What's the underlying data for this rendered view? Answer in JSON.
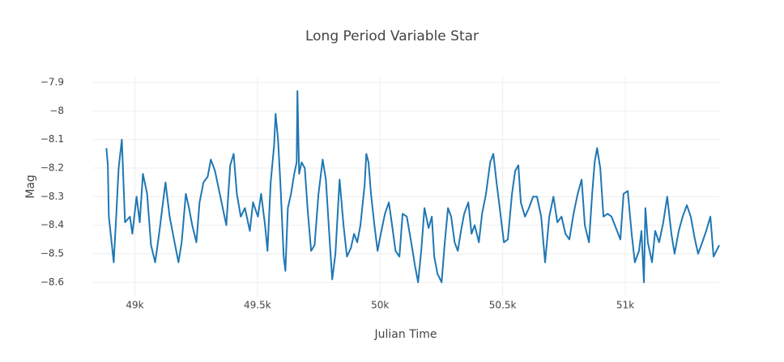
{
  "chart_data": {
    "type": "line",
    "title": "Long Period Variable Star",
    "x_label": "Julian Time",
    "y_label": "Mag",
    "x": [
      48884,
      48890,
      48894,
      48914,
      48924,
      48934,
      48947,
      48960,
      48980,
      48990,
      49007,
      49020,
      49033,
      49050,
      49066,
      49083,
      49099,
      49125,
      49142,
      49162,
      49178,
      49191,
      49208,
      49221,
      49234,
      49251,
      49264,
      49280,
      49297,
      49310,
      49327,
      49373,
      49389,
      49403,
      49416,
      49432,
      49449,
      49469,
      49482,
      49502,
      49515,
      49531,
      49541,
      49554,
      49568,
      49574,
      49584,
      49594,
      49607,
      49614,
      49624,
      49637,
      49650,
      49660,
      49663,
      49670,
      49680,
      49693,
      49706,
      49719,
      49733,
      49749,
      49766,
      49779,
      49795,
      49805,
      49818,
      49835,
      49851,
      49865,
      49881,
      49894,
      49907,
      49920,
      49937,
      49944,
      49953,
      49963,
      49977,
      49990,
      50003,
      50020,
      50036,
      50049,
      50063,
      50079,
      50092,
      50109,
      50129,
      50142,
      50155,
      50168,
      50181,
      50198,
      50211,
      50221,
      50234,
      50251,
      50264,
      50277,
      50290,
      50304,
      50317,
      50330,
      50343,
      50360,
      50373,
      50386,
      50403,
      50416,
      50432,
      50449,
      50462,
      50475,
      50488,
      50505,
      50521,
      50538,
      50551,
      50564,
      50574,
      50591,
      50607,
      50624,
      50640,
      50657,
      50673,
      50690,
      50707,
      50723,
      50740,
      50756,
      50772,
      50789,
      50806,
      50822,
      50835,
      50852,
      50865,
      50875,
      50885,
      50898,
      50911,
      50928,
      50944,
      50980,
      50993,
      51010,
      51026,
      51039,
      51056,
      51066,
      51076,
      51082,
      51092,
      51109,
      51122,
      51138,
      51155,
      51171,
      51188,
      51201,
      51218,
      51234,
      51251,
      51267,
      51284,
      51297,
      51314,
      51330,
      51347,
      51360,
      51383
    ],
    "series": [
      {
        "name": "Mag",
        "color": "#1f77b4",
        "values": [
          -8.13,
          -8.19,
          -8.37,
          -8.53,
          -8.37,
          -8.2,
          -8.1,
          -8.39,
          -8.37,
          -8.43,
          -8.3,
          -8.39,
          -8.22,
          -8.29,
          -8.47,
          -8.53,
          -8.43,
          -8.25,
          -8.37,
          -8.46,
          -8.53,
          -8.46,
          -8.29,
          -8.34,
          -8.4,
          -8.46,
          -8.32,
          -8.25,
          -8.23,
          -8.17,
          -8.21,
          -8.4,
          -8.19,
          -8.15,
          -8.29,
          -8.37,
          -8.34,
          -8.42,
          -8.32,
          -8.37,
          -8.29,
          -8.4,
          -8.49,
          -8.25,
          -8.12,
          -8.01,
          -8.1,
          -8.26,
          -8.51,
          -8.56,
          -8.34,
          -8.29,
          -8.22,
          -8.18,
          -7.93,
          -8.22,
          -8.18,
          -8.2,
          -8.36,
          -8.49,
          -8.47,
          -8.29,
          -8.17,
          -8.24,
          -8.46,
          -8.59,
          -8.5,
          -8.24,
          -8.4,
          -8.51,
          -8.48,
          -8.43,
          -8.46,
          -8.4,
          -8.26,
          -8.15,
          -8.18,
          -8.29,
          -8.4,
          -8.49,
          -8.43,
          -8.36,
          -8.32,
          -8.4,
          -8.49,
          -8.51,
          -8.36,
          -8.37,
          -8.47,
          -8.54,
          -8.6,
          -8.49,
          -8.34,
          -8.41,
          -8.37,
          -8.51,
          -8.57,
          -8.6,
          -8.46,
          -8.34,
          -8.37,
          -8.46,
          -8.49,
          -8.42,
          -8.36,
          -8.32,
          -8.43,
          -8.4,
          -8.46,
          -8.36,
          -8.29,
          -8.18,
          -8.15,
          -8.25,
          -8.34,
          -8.46,
          -8.45,
          -8.29,
          -8.21,
          -8.19,
          -8.32,
          -8.37,
          -8.34,
          -8.3,
          -8.3,
          -8.37,
          -8.53,
          -8.37,
          -8.3,
          -8.39,
          -8.37,
          -8.43,
          -8.45,
          -8.36,
          -8.29,
          -8.24,
          -8.4,
          -8.46,
          -8.29,
          -8.18,
          -8.13,
          -8.2,
          -8.37,
          -8.36,
          -8.37,
          -8.45,
          -8.29,
          -8.28,
          -8.43,
          -8.53,
          -8.49,
          -8.42,
          -8.6,
          -8.34,
          -8.46,
          -8.53,
          -8.42,
          -8.46,
          -8.39,
          -8.3,
          -8.43,
          -8.5,
          -8.42,
          -8.37,
          -8.33,
          -8.37,
          -8.45,
          -8.5,
          -8.46,
          -8.42,
          -8.37,
          -8.51,
          -8.47
        ]
      }
    ],
    "xlim": [
      48830,
      51383
    ],
    "xticks": [
      {
        "value": 49000,
        "label": "49k"
      },
      {
        "value": 49500,
        "label": "49.5k"
      },
      {
        "value": 50000,
        "label": "50k"
      },
      {
        "value": 50500,
        "label": "50.5k"
      },
      {
        "value": 51000,
        "label": "51k"
      }
    ],
    "ylim": [
      -8.65,
      -7.88
    ],
    "yticks": [
      {
        "value": -7.9,
        "label": "−7.9"
      },
      {
        "value": -8,
        "label": "−8"
      },
      {
        "value": -8.1,
        "label": "−8.1"
      },
      {
        "value": -8.2,
        "label": "−8.2"
      },
      {
        "value": -8.3,
        "label": "−8.3"
      },
      {
        "value": -8.4,
        "label": "−8.4"
      },
      {
        "value": -8.5,
        "label": "−8.5"
      },
      {
        "value": -8.6,
        "label": "−8.6"
      }
    ],
    "grid": true
  }
}
